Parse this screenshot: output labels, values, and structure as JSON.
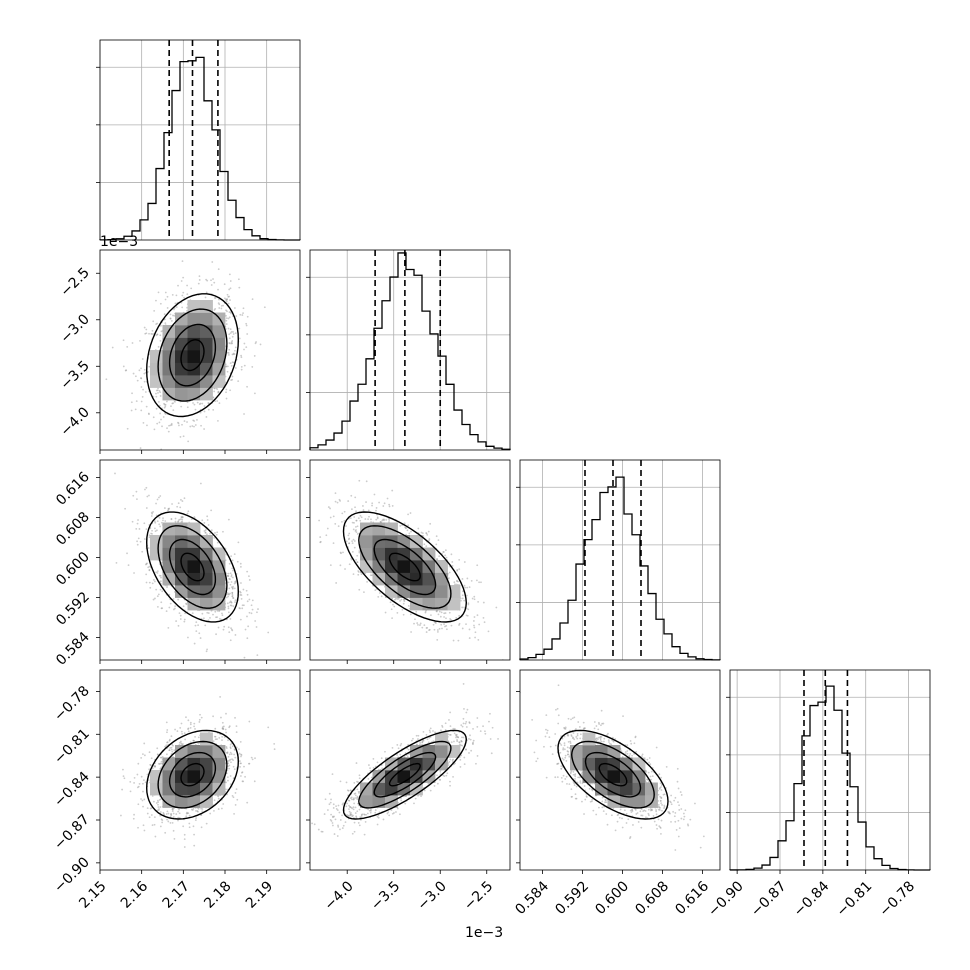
{
  "chart_data": {
    "type": "corner",
    "title": "",
    "grid": true,
    "parameters": [
      {
        "range": [
          2.15,
          2.198
        ],
        "ticks": [
          "2.15",
          "2.16",
          "2.17",
          "2.18",
          "2.19"
        ],
        "tick_values": [
          2.15,
          2.16,
          2.17,
          2.18,
          2.19
        ],
        "offset_label": "",
        "quantiles": [
          2.1666,
          2.1722,
          2.1783
        ],
        "median": 2.1722,
        "sigma": 0.0055,
        "hist_peak": 1.0
      },
      {
        "range": [
          -4.4,
          -2.25
        ],
        "ticks": [
          "−4.0",
          "−3.5",
          "−3.0",
          "−2.5"
        ],
        "tick_values": [
          -4.0,
          -3.5,
          -3.0,
          -2.5
        ],
        "offset_label": "1e−3",
        "quantiles": [
          -3.7,
          -3.38,
          -3.0
        ],
        "median": -3.38,
        "sigma": 0.33,
        "hist_peak": 1.0
      },
      {
        "range": [
          0.5795,
          0.6195
        ],
        "ticks": [
          "0.584",
          "0.592",
          "0.600",
          "0.608",
          "0.616"
        ],
        "tick_values": [
          0.584,
          0.592,
          0.6,
          0.608,
          0.616
        ],
        "offset_label": "",
        "quantiles": [
          0.5925,
          0.5981,
          0.6037
        ],
        "median": 0.5981,
        "sigma": 0.0055,
        "hist_peak": 1.0
      },
      {
        "range": [
          -0.905,
          -0.765
        ],
        "ticks": [
          "−0.90",
          "−0.87",
          "−0.84",
          "−0.81",
          "−0.78"
        ],
        "tick_values": [
          -0.9,
          -0.87,
          -0.84,
          -0.81,
          -0.78
        ],
        "offset_label": "",
        "quantiles": [
          -0.8532,
          -0.8383,
          -0.8228
        ],
        "median": -0.8383,
        "sigma": 0.0155,
        "hist_peak": 1.0
      }
    ],
    "correlations": [
      [
        1,
        0.25,
        -0.45,
        0.3
      ],
      [
        0.25,
        1,
        -0.65,
        0.8
      ],
      [
        -0.45,
        -0.65,
        1,
        -0.6
      ],
      [
        0.3,
        0.8,
        -0.6,
        1
      ]
    ],
    "y_offset_label_row1": "1e−3",
    "x_offset_label_col1": "1e−3"
  }
}
